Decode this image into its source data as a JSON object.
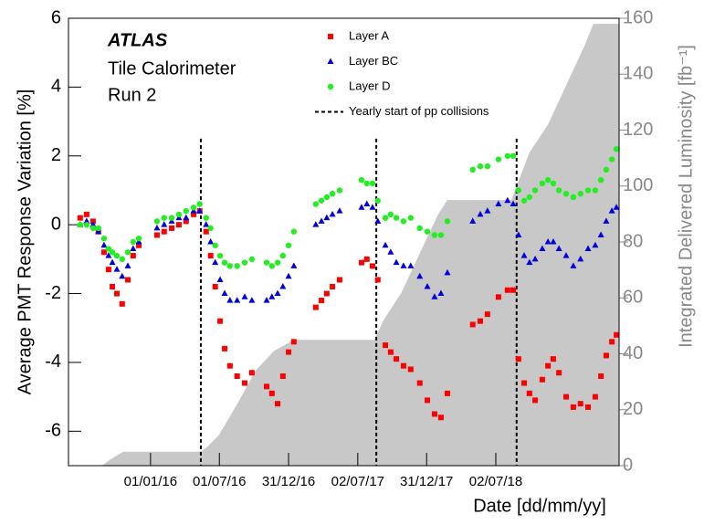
{
  "chart_data": {
    "type": "scatter",
    "annotations": [
      "ATLAS",
      "Tile Calorimeter",
      "Run 2"
    ],
    "x_label": "Date [dd/mm/yy]",
    "y_label": "Average PMT Response Variation [%]",
    "y2_label": "Integrated Delivered Luminosity [fb⁻¹]",
    "xlim": [
      "2015-05-29",
      "2019-05-24"
    ],
    "xticks": [
      {
        "value": "2016-01-01",
        "label": "01/01/16"
      },
      {
        "value": "2016-07-01",
        "label": "01/07/16"
      },
      {
        "value": "2016-12-31",
        "label": "31/12/16"
      },
      {
        "value": "2017-07-02",
        "label": "02/07/17"
      },
      {
        "value": "2017-12-31",
        "label": "31/12/17"
      },
      {
        "value": "2018-07-02",
        "label": "02/07/18"
      }
    ],
    "ylim": [
      -7,
      6
    ],
    "yticks": [
      -6,
      -4,
      -2,
      0,
      2,
      4,
      6
    ],
    "y2lim": [
      0,
      160
    ],
    "y2ticks": [
      0,
      20,
      40,
      60,
      80,
      100,
      120,
      140,
      160
    ],
    "x": [
      "2015-06-29",
      "2015-07-16",
      "2015-08-02",
      "2015-08-16",
      "2015-08-31",
      "2015-09-12",
      "2015-09-22",
      "2015-10-04",
      "2015-10-18",
      "2015-11-02",
      "2015-11-16",
      "2015-12-01",
      "2016-01-18",
      "2016-02-06",
      "2016-02-26",
      "2016-03-16",
      "2016-04-04",
      "2016-04-24",
      "2016-05-10",
      "2016-05-27",
      "2016-06-08",
      "2016-06-20",
      "2016-07-03",
      "2016-07-15",
      "2016-07-29",
      "2016-08-17",
      "2016-09-06",
      "2016-09-25",
      "2016-11-03",
      "2016-11-17",
      "2016-12-02",
      "2016-12-16",
      "2016-12-31",
      "2017-01-14",
      "2017-03-13",
      "2017-03-28",
      "2017-04-11",
      "2017-04-26",
      "2017-05-15",
      "2017-07-12",
      "2017-07-26",
      "2017-08-10",
      "2017-08-24",
      "2017-09-13",
      "2017-09-27",
      "2017-10-12",
      "2017-10-31",
      "2017-11-19",
      "2017-12-13",
      "2018-01-02",
      "2018-01-21",
      "2018-02-07",
      "2018-02-24",
      "2018-05-02",
      "2018-05-22",
      "2018-06-10",
      "2018-07-09",
      "2018-08-02",
      "2018-08-17",
      "2018-08-31",
      "2018-09-15",
      "2018-09-29",
      "2018-10-14",
      "2018-11-02",
      "2018-11-17",
      "2018-12-01",
      "2018-12-16",
      "2019-01-04",
      "2019-01-23",
      "2019-02-11",
      "2019-03-03",
      "2019-03-22",
      "2019-04-06",
      "2019-04-20",
      "2019-05-05",
      "2019-05-17"
    ],
    "series": [
      {
        "name": "Layer A",
        "color": "#ff0000",
        "marker": "square",
        "values": [
          0.2,
          0.3,
          0.1,
          -0.2,
          -0.8,
          -1.3,
          -1.8,
          -2.0,
          -2.3,
          -1.6,
          -0.9,
          -0.6,
          -0.3,
          -0.2,
          -0.1,
          0.0,
          0.1,
          0.3,
          0.4,
          -0.2,
          -0.9,
          -1.8,
          -2.8,
          -3.6,
          -4.1,
          -4.4,
          -4.6,
          -4.3,
          -4.7,
          -4.9,
          -5.2,
          -4.4,
          -3.7,
          -3.4,
          -2.4,
          -2.2,
          -2.0,
          -1.8,
          -1.6,
          -1.1,
          -1.0,
          -1.2,
          -1.6,
          -3.5,
          -3.7,
          -3.9,
          -4.1,
          -4.2,
          -4.6,
          -5.1,
          -5.5,
          -5.6,
          -4.9,
          -2.9,
          -2.8,
          -2.6,
          -2.1,
          -1.9,
          -1.9,
          -3.9,
          -4.6,
          -4.9,
          -5.1,
          -4.5,
          -4.1,
          -3.9,
          -4.3,
          -5.0,
          -5.3,
          -5.2,
          -5.3,
          -5.0,
          -4.4,
          -3.8,
          -3.4,
          -3.2
        ]
      },
      {
        "name": "Layer BC",
        "color": "#0000dd",
        "marker": "triangle",
        "values": [
          0.0,
          0.1,
          0.0,
          -0.2,
          -0.6,
          -0.9,
          -1.1,
          -1.3,
          -1.5,
          -1.2,
          -0.7,
          -0.5,
          -0.1,
          0.0,
          0.1,
          0.2,
          0.2,
          0.4,
          0.4,
          0.0,
          -0.5,
          -1.1,
          -1.6,
          -2.0,
          -2.2,
          -2.2,
          -2.1,
          -2.2,
          -2.2,
          -2.1,
          -2.0,
          -1.8,
          -1.5,
          -1.2,
          0.0,
          0.1,
          0.2,
          0.3,
          0.4,
          0.5,
          0.6,
          0.5,
          0.1,
          -0.6,
          -0.8,
          -1.1,
          -1.2,
          -1.2,
          -1.5,
          -1.8,
          -2.1,
          -2.0,
          -1.4,
          0.1,
          0.3,
          0.4,
          0.6,
          0.7,
          0.6,
          -0.3,
          -0.9,
          -1.1,
          -1.0,
          -0.7,
          -0.5,
          -0.5,
          -0.7,
          -0.9,
          -1.2,
          -1.0,
          -0.7,
          -0.6,
          -0.3,
          0.1,
          0.4,
          0.5
        ]
      },
      {
        "name": "Layer D",
        "color": "#22ee22",
        "marker": "circle",
        "values": [
          0.0,
          0.0,
          -0.1,
          -0.1,
          -0.4,
          -0.7,
          -0.8,
          -0.9,
          -1.0,
          -0.8,
          -0.5,
          -0.4,
          0.1,
          0.2,
          0.2,
          0.3,
          0.4,
          0.5,
          0.6,
          0.2,
          -0.1,
          -0.6,
          -0.9,
          -1.1,
          -1.2,
          -1.2,
          -1.1,
          -1.0,
          -1.1,
          -1.2,
          -1.1,
          -0.9,
          -0.6,
          -0.2,
          0.6,
          0.7,
          0.8,
          0.9,
          1.0,
          1.3,
          1.2,
          1.2,
          0.7,
          0.2,
          0.3,
          0.2,
          0.1,
          0.2,
          -0.1,
          -0.2,
          -0.3,
          -0.3,
          0.1,
          1.6,
          1.7,
          1.7,
          1.9,
          2.0,
          2.0,
          1.0,
          0.7,
          0.8,
          1.0,
          1.2,
          1.3,
          1.2,
          1.0,
          0.9,
          0.8,
          0.9,
          1.0,
          1.0,
          1.3,
          1.6,
          1.9,
          2.2
        ]
      }
    ],
    "vlines": {
      "name": "Yearly start of pp collisions",
      "color": "#000000",
      "x": [
        "2016-05-13",
        "2017-08-20",
        "2018-08-26"
      ]
    },
    "area": {
      "axis": "y2",
      "color": "#c8c8c8",
      "x": [
        "2015-08-26",
        "2015-09-14",
        "2015-10-21",
        "2016-05-13",
        "2016-06-01",
        "2016-06-30",
        "2016-08-17",
        "2016-10-05",
        "2016-11-22",
        "2017-01-14",
        "2017-08-15",
        "2017-09-08",
        "2017-10-26",
        "2017-12-13",
        "2018-01-31",
        "2018-02-24",
        "2018-08-12",
        "2018-08-26",
        "2018-09-29",
        "2018-11-17",
        "2019-01-04",
        "2019-02-21",
        "2019-03-17",
        "2019-05-09"
      ],
      "values": [
        0,
        2,
        5,
        5,
        7,
        11,
        22,
        34,
        41,
        45,
        45,
        52,
        62,
        76,
        90,
        95,
        95,
        100,
        112,
        122,
        136,
        150,
        158,
        158
      ]
    }
  }
}
